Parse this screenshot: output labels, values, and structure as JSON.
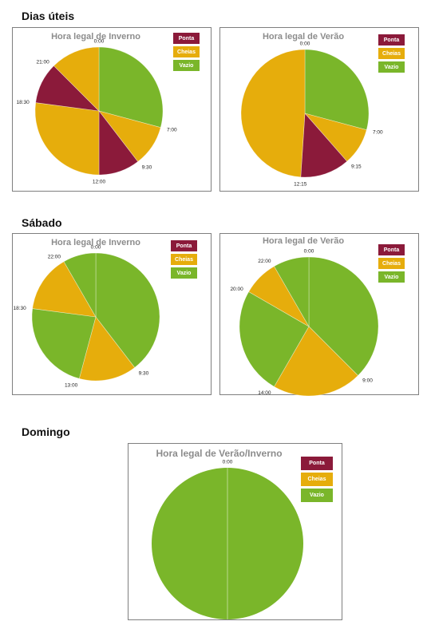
{
  "sections": {
    "weekday": "Dias úteis",
    "saturday": "Sábado",
    "sunday": "Domingo"
  },
  "legend": {
    "peak": "Ponta",
    "full": "Cheias",
    "off": "Vazio"
  },
  "colors": {
    "peak": "#8b1a3a",
    "full": "#e6ad0c",
    "off": "#7ab62a",
    "border": "#7f7f7f",
    "title": "#8c8c8c"
  },
  "chart_data": [
    {
      "id": "weekday-winter",
      "type": "pie",
      "title": "Hora legal de Inverno",
      "unit": "time of day (24h cycle)",
      "slices": [
        {
          "from": "0:00",
          "to": "7:00",
          "category": "off"
        },
        {
          "from": "7:00",
          "to": "9:30",
          "category": "full"
        },
        {
          "from": "9:30",
          "to": "12:00",
          "category": "peak"
        },
        {
          "from": "12:00",
          "to": "18:30",
          "category": "full"
        },
        {
          "from": "18:30",
          "to": "21:00",
          "category": "peak"
        },
        {
          "from": "21:00",
          "to": "0:00",
          "category": "full"
        }
      ],
      "labels": [
        "0:00",
        "7:00",
        "9:30",
        "12:00",
        "18:30",
        "21:00"
      ]
    },
    {
      "id": "weekday-summer",
      "type": "pie",
      "title": "Hora legal de Verão",
      "unit": "time of day (24h cycle)",
      "slices": [
        {
          "from": "0:00",
          "to": "7:00",
          "category": "off"
        },
        {
          "from": "7:00",
          "to": "9:15",
          "category": "full"
        },
        {
          "from": "9:15",
          "to": "12:15",
          "category": "peak"
        },
        {
          "from": "12:15",
          "to": "0:00",
          "category": "full"
        }
      ],
      "labels": [
        "0:00",
        "7:00",
        "9:15",
        "12:15"
      ]
    },
    {
      "id": "saturday-winter",
      "type": "pie",
      "title": "Hora legal de Inverno",
      "unit": "time of day (24h cycle)",
      "slices": [
        {
          "from": "0:00",
          "to": "9:30",
          "category": "off"
        },
        {
          "from": "9:30",
          "to": "13:00",
          "category": "full"
        },
        {
          "from": "13:00",
          "to": "18:30",
          "category": "off"
        },
        {
          "from": "18:30",
          "to": "22:00",
          "category": "full"
        },
        {
          "from": "22:00",
          "to": "0:00",
          "category": "off"
        }
      ],
      "labels": [
        "0:00",
        "9:30",
        "13:00",
        "18:30",
        "22:00"
      ]
    },
    {
      "id": "saturday-summer",
      "type": "pie",
      "title": "Hora legal de Verão",
      "unit": "time of day (24h cycle)",
      "slices": [
        {
          "from": "0:00",
          "to": "9:00",
          "category": "off"
        },
        {
          "from": "9:00",
          "to": "14:00",
          "category": "full"
        },
        {
          "from": "14:00",
          "to": "20:00",
          "category": "off"
        },
        {
          "from": "20:00",
          "to": "22:00",
          "category": "full"
        },
        {
          "from": "22:00",
          "to": "0:00",
          "category": "off"
        }
      ],
      "labels": [
        "0:00",
        "9:00",
        "14:00",
        "20:00",
        "22:00"
      ]
    },
    {
      "id": "sunday",
      "type": "pie",
      "title": "Hora legal de Verão/Inverno",
      "unit": "time of day (24h cycle)",
      "slices": [
        {
          "from": "0:00",
          "to": "0:00",
          "category": "off"
        }
      ],
      "labels": [
        "0:00"
      ]
    }
  ]
}
